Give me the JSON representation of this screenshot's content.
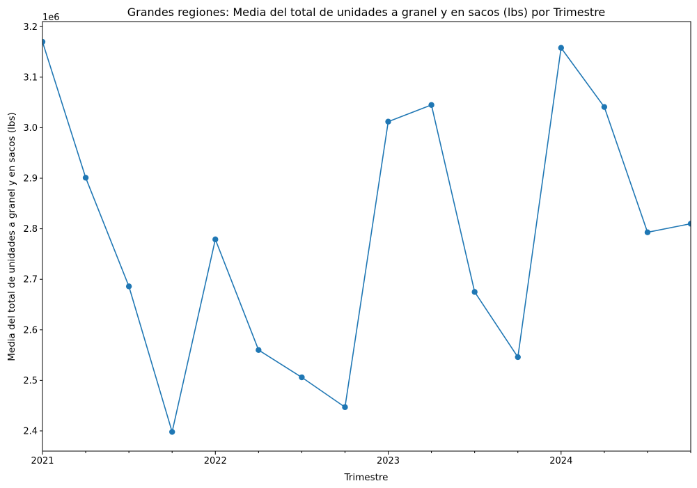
{
  "chart_data": {
    "type": "line",
    "title": "Grandes regiones: Media del total de unidades a granel y en sacos (lbs) por Trimestre",
    "xlabel": "Trimestre",
    "ylabel": "Media del total de unidades a granel y en sacos (lbs)",
    "y_offset_label": "1e6",
    "color": "#1f77b4",
    "grid": false,
    "x": [
      "2021Q1",
      "2021Q2",
      "2021Q3",
      "2021Q4",
      "2022Q1",
      "2022Q2",
      "2022Q3",
      "2022Q4",
      "2023Q1",
      "2023Q2",
      "2023Q3",
      "2023Q4",
      "2024Q1",
      "2024Q2",
      "2024Q3",
      "2024Q4"
    ],
    "values": [
      3170000,
      2901000,
      2686000,
      2398000,
      2779000,
      2560000,
      2506000,
      2447000,
      3012000,
      3045000,
      2675000,
      2546000,
      3158000,
      3041000,
      2793000,
      2810000
    ],
    "x_tick_labels": [
      "2021",
      "2022",
      "2023",
      "2024"
    ],
    "y_tick_labels": [
      "2.4",
      "2.5",
      "2.6",
      "2.7",
      "2.8",
      "2.9",
      "3.0",
      "3.1",
      "3.2"
    ],
    "ylim": [
      2.36,
      3.21
    ]
  }
}
